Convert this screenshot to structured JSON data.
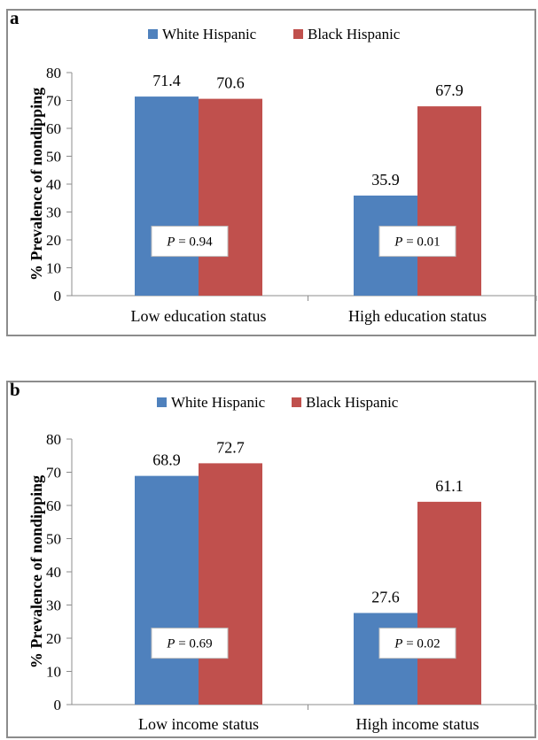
{
  "colors": {
    "white_hispanic": "#4f81bd",
    "black_hispanic": "#c0504d",
    "axis": "#8c8c8c"
  },
  "chart_data": [
    {
      "panel": "a",
      "type": "bar",
      "categories": [
        "Low education status",
        "High education status"
      ],
      "series": [
        {
          "name": "White Hispanic",
          "values": [
            71.4,
            35.9
          ]
        },
        {
          "name": "Black Hispanic",
          "values": [
            70.6,
            67.9
          ]
        }
      ],
      "annotations": [
        {
          "category": 0,
          "prefix": "P",
          "text": " = 0.94"
        },
        {
          "category": 1,
          "prefix": "P",
          "text": " = 0.01"
        }
      ],
      "ylabel": "% Prevalence of nondipping",
      "ylim": [
        0,
        80
      ],
      "yticks": [
        0,
        10,
        20,
        30,
        40,
        50,
        60,
        70,
        80
      ],
      "legend": "top",
      "grid": false
    },
    {
      "panel": "b",
      "type": "bar",
      "categories": [
        "Low income status",
        "High income status"
      ],
      "series": [
        {
          "name": "White Hispanic",
          "values": [
            68.9,
            27.6
          ]
        },
        {
          "name": "Black Hispanic",
          "values": [
            72.7,
            61.1
          ]
        }
      ],
      "annotations": [
        {
          "category": 0,
          "prefix": "P",
          "text": " = 0.69"
        },
        {
          "category": 1,
          "prefix": "P",
          "text": " = 0.02"
        }
      ],
      "ylabel": "% Prevalence of nondipping",
      "ylim": [
        0,
        80
      ],
      "yticks": [
        0,
        10,
        20,
        30,
        40,
        50,
        60,
        70,
        80
      ],
      "legend": "top",
      "grid": false
    }
  ]
}
